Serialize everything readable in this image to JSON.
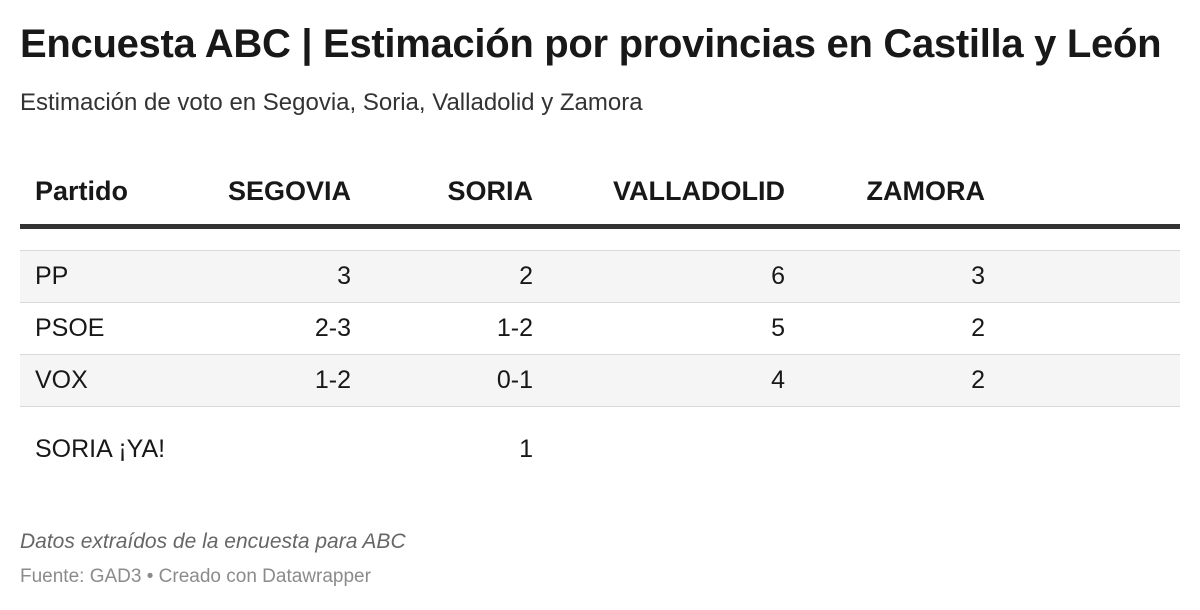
{
  "title": "Encuesta ABC | Estimación por provincias en Castilla y León",
  "subtitle": "Estimación de voto en Segovia, Soria, Valladolid y Zamora",
  "chart_data": {
    "type": "table",
    "columns": [
      "Partido",
      "SEGOVIA",
      "SORIA",
      "VALLADOLID",
      "ZAMORA"
    ],
    "rows": [
      {
        "party": "PP",
        "values": [
          "3",
          "2",
          "6",
          "3"
        ]
      },
      {
        "party": "PSOE",
        "values": [
          "2-3",
          "1-2",
          "5",
          "2"
        ]
      },
      {
        "party": "VOX",
        "values": [
          "1-2",
          "0-1",
          "4",
          "2"
        ]
      },
      {
        "party": "SORIA ¡YA!",
        "values": [
          "",
          "1",
          "",
          ""
        ]
      }
    ]
  },
  "notes": "Datos extraídos de la encuesta para ABC",
  "footer": "Fuente: GAD3 • Creado con Datawrapper"
}
